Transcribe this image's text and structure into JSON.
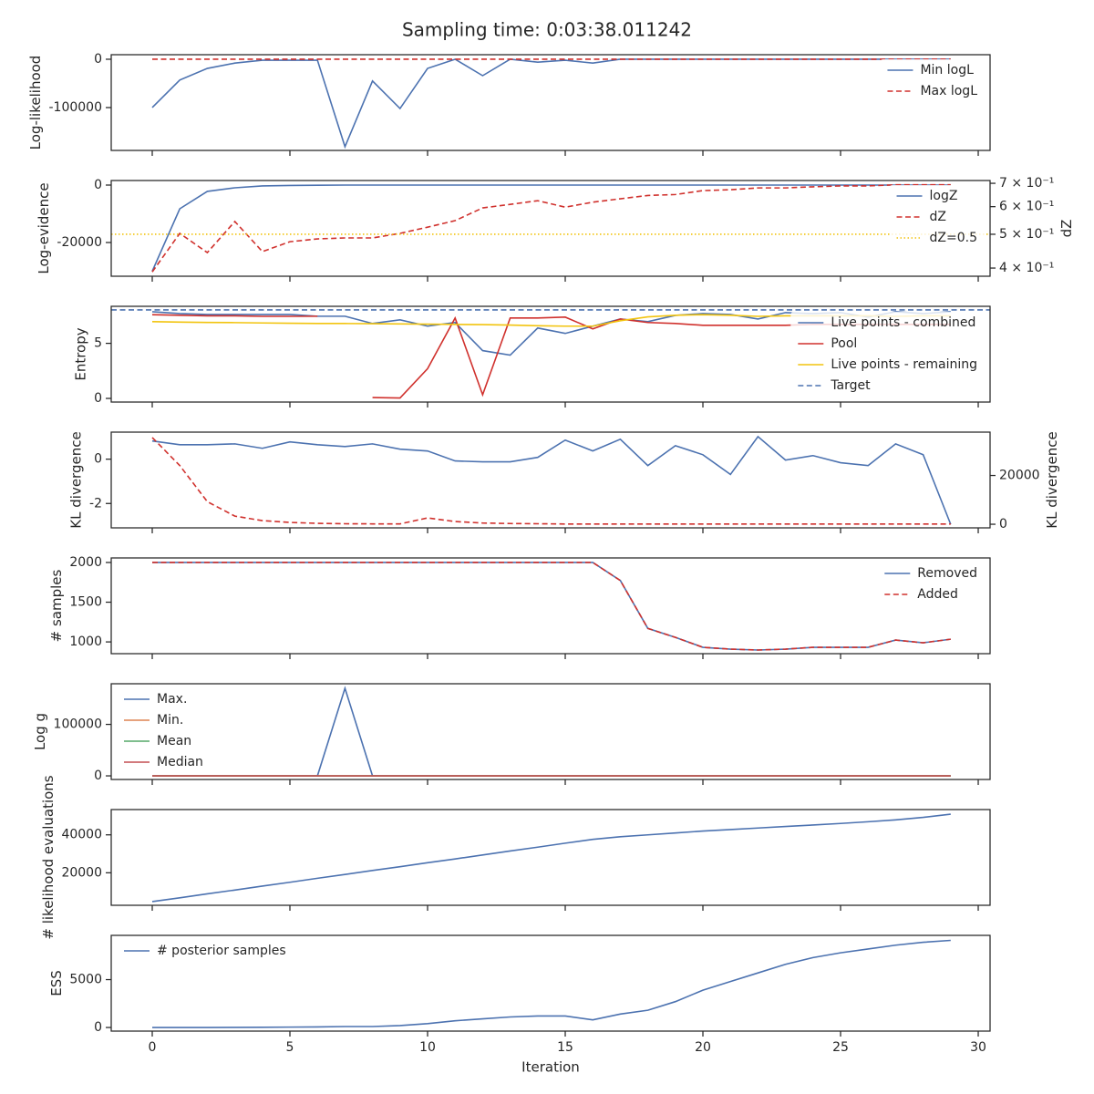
{
  "title": "Sampling time: 0:03:38.011242",
  "chart_data": [
    {
      "type": "line",
      "ylabel": "Log-likelihood",
      "x": [
        0,
        1,
        2,
        3,
        4,
        5,
        6,
        7,
        8,
        9,
        10,
        11,
        12,
        13,
        14,
        15,
        16,
        17,
        18,
        19,
        20,
        21,
        22,
        23,
        24,
        25,
        26,
        27,
        28,
        29
      ],
      "xlim": [
        -1.49,
        30.43
      ],
      "xticks": [
        0,
        5,
        10,
        15,
        20,
        25,
        30
      ],
      "ylim": [
        -188700,
        9400
      ],
      "yticks": [
        -100000,
        0
      ],
      "legend": "upper right",
      "series": [
        {
          "name": "Min logL",
          "color": "#4c72b0",
          "linestyle": "solid",
          "values": [
            -100000,
            -43000,
            -19000,
            -8000,
            -2000,
            -2000,
            -2000,
            -181000,
            -45000,
            -102000,
            -19000,
            0,
            -34000,
            0,
            -6000,
            -2000,
            -8000,
            0,
            0,
            0,
            0,
            0,
            0,
            0,
            0,
            0,
            0,
            0,
            0,
            0
          ]
        },
        {
          "name": "Max logL",
          "color": "#d0312d",
          "linestyle": "dashed",
          "values": [
            0,
            0,
            0,
            0,
            0,
            0,
            0,
            0,
            0,
            0,
            0,
            0,
            0,
            0,
            0,
            0,
            0,
            0,
            0,
            0,
            0,
            0,
            0,
            0,
            0,
            0,
            0,
            0,
            0,
            0
          ]
        }
      ]
    },
    {
      "type": "line",
      "ylabel": "Log-evidence",
      "y2label": "dZ",
      "x": [
        0,
        1,
        2,
        3,
        4,
        5,
        6,
        7,
        8,
        9,
        10,
        11,
        12,
        13,
        14,
        15,
        16,
        17,
        18,
        19,
        20,
        21,
        22,
        23,
        24,
        25,
        26,
        27,
        28,
        29
      ],
      "xlim": [
        -1.49,
        30.43
      ],
      "xticks": [
        0,
        5,
        10,
        15,
        20,
        25,
        30
      ],
      "ylim": [
        -31746,
        1587
      ],
      "yticks": [
        -20000,
        0
      ],
      "y2lim": [
        0.379,
        0.713
      ],
      "y2log": true,
      "y2ticks": [
        {
          "value": 0.4,
          "label": "4 × 10⁻¹"
        },
        {
          "value": 0.5,
          "label": "5 × 10⁻¹"
        },
        {
          "value": 0.6,
          "label": "6 × 10⁻¹"
        },
        {
          "value": 0.7,
          "label": "7 × 10⁻¹"
        }
      ],
      "legend": "upper right",
      "series": [
        {
          "name": "logZ",
          "color": "#4c72b0",
          "linestyle": "solid",
          "values": [
            -30000,
            -8250,
            -2200,
            -950,
            -300,
            -150,
            -50,
            0,
            0,
            0,
            0,
            0,
            0,
            0,
            0,
            0,
            0,
            0,
            0,
            0,
            0,
            0,
            0,
            0,
            0,
            0,
            0,
            0,
            0,
            0
          ]
        },
        {
          "name": "dZ",
          "color": "#d0312d",
          "linestyle": "dashed",
          "axis": "y2",
          "values": [
            0.39,
            0.503,
            0.443,
            0.544,
            0.446,
            0.476,
            0.485,
            0.488,
            0.488,
            0.503,
            0.524,
            0.547,
            0.595,
            0.609,
            0.624,
            0.598,
            0.618,
            0.632,
            0.646,
            0.65,
            0.667,
            0.671,
            0.679,
            0.679,
            0.684,
            0.688,
            0.688,
            0.693,
            0.693,
            0.693
          ]
        }
      ],
      "hlines": [
        {
          "name": "dZ=0.5",
          "value": 0.5,
          "axis": "y2",
          "color": "#f2c40f",
          "linestyle": "dotted"
        }
      ]
    },
    {
      "type": "line",
      "ylabel": "Entropy",
      "x": [
        0,
        1,
        2,
        3,
        4,
        5,
        6,
        7,
        8,
        9,
        10,
        11,
        12,
        13,
        14,
        15,
        16,
        17,
        18,
        19,
        20,
        21,
        22,
        23,
        24,
        25,
        26,
        27,
        28,
        29
      ],
      "xlim": [
        -1.49,
        30.43
      ],
      "xticks": [
        0,
        5,
        10,
        15,
        20,
        25,
        30
      ],
      "ylim": [
        -0.33,
        8.36
      ],
      "yticks": [
        0,
        5
      ],
      "legend": "lower right",
      "series": [
        {
          "name": "Live points - combined",
          "color": "#4c72b0",
          "linestyle": "solid",
          "values": [
            7.87,
            7.7,
            7.62,
            7.62,
            7.62,
            7.62,
            7.46,
            7.46,
            6.8,
            7.13,
            6.56,
            6.89,
            4.34,
            3.93,
            6.39,
            5.9,
            6.56,
            7.21,
            6.97,
            7.54,
            7.7,
            7.62,
            7.21,
            7.79,
            7.7,
            7.79,
            7.38,
            7.87,
            7.7,
            7.87
          ]
        },
        {
          "name": "Pool",
          "color": "#d0312d",
          "linestyle": "solid",
          "values": [
            7.6,
            7.55,
            7.5,
            7.5,
            7.45,
            7.45,
            7.46,
            null,
            0.08,
            0.04,
            2.7,
            7.3,
            0.33,
            7.3,
            7.3,
            7.38,
            6.31,
            7.21,
            6.89,
            6.8,
            6.64,
            6.64,
            6.64,
            6.64,
            6.72,
            6.72,
            6.72,
            6.72,
            6.72,
            6.72
          ]
        },
        {
          "name": "Live points - remaining",
          "color": "#f2c40f",
          "linestyle": "solid",
          "values": [
            6.97,
            6.93,
            6.9,
            6.88,
            6.85,
            6.82,
            6.8,
            6.8,
            6.78,
            6.76,
            6.74,
            6.72,
            6.7,
            6.66,
            6.6,
            6.56,
            6.56,
            7.05,
            7.4,
            7.55,
            7.6,
            7.55,
            7.45,
            7.5,
            7.5,
            7.5,
            7.5,
            7.45,
            7.5,
            7.5
          ]
        }
      ],
      "hlines": [
        {
          "name": "Target",
          "value": 8.03,
          "color": "#4c72b0",
          "linestyle": "dashed"
        }
      ]
    },
    {
      "type": "line",
      "ylabel": "KL divergence",
      "y2label": "KL divergence",
      "x": [
        0,
        1,
        2,
        3,
        4,
        5,
        6,
        7,
        8,
        9,
        10,
        11,
        12,
        13,
        14,
        15,
        16,
        17,
        18,
        19,
        20,
        21,
        22,
        23,
        24,
        25,
        26,
        27,
        28,
        29
      ],
      "xlim": [
        -1.49,
        30.43
      ],
      "xticks": [
        0,
        5,
        10,
        15,
        20,
        25,
        30
      ],
      "ylim": [
        -3.1,
        1.22
      ],
      "yticks": [
        -2,
        0
      ],
      "y2lim": [
        -1481,
        37778
      ],
      "y2ticks": [
        0,
        20000
      ],
      "series": [
        {
          "color": "#4c72b0",
          "linestyle": "solid",
          "values": [
            0.82,
            0.65,
            0.65,
            0.69,
            0.49,
            0.78,
            0.65,
            0.57,
            0.69,
            0.45,
            0.37,
            -0.08,
            -0.12,
            -0.12,
            0.08,
            0.86,
            0.37,
            0.9,
            -0.29,
            0.61,
            0.2,
            -0.69,
            1.02,
            -0.04,
            0.16,
            -0.16,
            -0.29,
            0.69,
            0.2,
            -2.94
          ]
        },
        {
          "color": "#d0312d",
          "linestyle": "dashed",
          "axis": "y2",
          "values": [
            35556,
            24074,
            9259,
            3333,
            1481,
            741,
            370,
            200,
            150,
            150,
            2593,
            1111,
            500,
            300,
            200,
            100,
            100,
            100,
            100,
            100,
            100,
            100,
            100,
            100,
            100,
            100,
            100,
            100,
            100,
            100
          ]
        }
      ]
    },
    {
      "type": "line",
      "ylabel": "# samples",
      "x": [
        0,
        1,
        2,
        3,
        4,
        5,
        6,
        7,
        8,
        9,
        10,
        11,
        12,
        13,
        14,
        15,
        16,
        17,
        18,
        19,
        20,
        21,
        22,
        23,
        24,
        25,
        26,
        27,
        28,
        29
      ],
      "xlim": [
        -1.49,
        30.43
      ],
      "xticks": [
        0,
        5,
        10,
        15,
        20,
        25,
        30
      ],
      "ylim": [
        852,
        2057
      ],
      "yticks": [
        1000,
        1500,
        2000
      ],
      "legend": "upper right",
      "series": [
        {
          "name": "Removed",
          "color": "#4c72b0",
          "linestyle": "solid",
          "values": [
            2000,
            2000,
            2000,
            2000,
            2000,
            2000,
            2000,
            2000,
            2000,
            2000,
            2000,
            2000,
            2000,
            2000,
            2000,
            2000,
            2000,
            1773,
            1170,
            1057,
            932,
            909,
            898,
            909,
            932,
            932,
            932,
            1023,
            989,
            1034
          ]
        },
        {
          "name": "Added",
          "color": "#d0312d",
          "linestyle": "dashed",
          "values": [
            2000,
            2000,
            2000,
            2000,
            2000,
            2000,
            2000,
            2000,
            2000,
            2000,
            2000,
            2000,
            2000,
            2000,
            2000,
            2000,
            2000,
            1773,
            1170,
            1057,
            932,
            909,
            898,
            909,
            932,
            932,
            932,
            1023,
            989,
            1034
          ]
        }
      ]
    },
    {
      "type": "line",
      "ylabel": "Log g",
      "x": [
        0,
        1,
        2,
        3,
        4,
        5,
        6,
        7,
        8,
        9,
        10,
        11,
        12,
        13,
        14,
        15,
        16,
        17,
        18,
        19,
        20,
        21,
        22,
        23,
        24,
        25,
        26,
        27,
        28,
        29
      ],
      "xlim": [
        -1.49,
        30.43
      ],
      "xticks": [
        0,
        5,
        10,
        15,
        20,
        25,
        30
      ],
      "ylim": [
        -7018,
        178947
      ],
      "yticks": [
        0,
        100000
      ],
      "legend": "upper left",
      "series": [
        {
          "name": "Max.",
          "color": "#4c72b0",
          "linestyle": "solid",
          "values": [
            0,
            0,
            0,
            0,
            0,
            0,
            0,
            170175,
            0,
            0,
            0,
            0,
            0,
            0,
            0,
            0,
            0,
            0,
            0,
            0,
            0,
            0,
            0,
            0,
            0,
            0,
            0,
            0,
            0,
            0
          ]
        },
        {
          "name": "Min.",
          "color": "#dd8452",
          "linestyle": "solid",
          "values": [
            0,
            0,
            0,
            0,
            0,
            0,
            0,
            0,
            0,
            0,
            0,
            0,
            0,
            0,
            0,
            0,
            0,
            0,
            0,
            0,
            0,
            0,
            0,
            0,
            0,
            0,
            0,
            0,
            0,
            0
          ]
        },
        {
          "name": "Mean",
          "color": "#55a868",
          "linestyle": "solid",
          "values": [
            0,
            0,
            0,
            0,
            0,
            0,
            0,
            0,
            0,
            0,
            0,
            0,
            0,
            0,
            0,
            0,
            0,
            0,
            0,
            0,
            0,
            0,
            0,
            0,
            0,
            0,
            0,
            0,
            0,
            0
          ]
        },
        {
          "name": "Median",
          "color": "#c44e52",
          "linestyle": "solid",
          "values": [
            0,
            0,
            0,
            0,
            0,
            0,
            0,
            0,
            0,
            0,
            0,
            0,
            0,
            0,
            0,
            0,
            0,
            0,
            0,
            0,
            0,
            0,
            0,
            0,
            0,
            0,
            0,
            0,
            0,
            0
          ]
        }
      ]
    },
    {
      "type": "line",
      "ylabel": "# likelihood evaluations",
      "x": [
        0,
        1,
        2,
        3,
        4,
        5,
        6,
        7,
        8,
        9,
        10,
        11,
        12,
        13,
        14,
        15,
        16,
        17,
        18,
        19,
        20,
        21,
        22,
        23,
        24,
        25,
        26,
        27,
        28,
        29
      ],
      "xlim": [
        -1.49,
        30.43
      ],
      "xticks": [
        0,
        5,
        10,
        15,
        20,
        25,
        30
      ],
      "ylim": [
        2857,
        53333
      ],
      "yticks": [
        20000,
        40000
      ],
      "series": [
        {
          "color": "#4c72b0",
          "linestyle": "solid",
          "values": [
            4800,
            6800,
            8900,
            10900,
            13000,
            15000,
            17100,
            19100,
            21200,
            23200,
            25300,
            27300,
            29400,
            31500,
            33500,
            35600,
            37600,
            39000,
            40000,
            41000,
            42000,
            42800,
            43600,
            44400,
            45200,
            46000,
            46900,
            47900,
            49200,
            50900
          ]
        }
      ]
    },
    {
      "type": "line",
      "ylabel": "ESS",
      "xlabel": "Iteration",
      "x": [
        0,
        1,
        2,
        3,
        4,
        5,
        6,
        7,
        8,
        9,
        10,
        11,
        12,
        13,
        14,
        15,
        16,
        17,
        18,
        19,
        20,
        21,
        22,
        23,
        24,
        25,
        26,
        27,
        28,
        29
      ],
      "xlim": [
        -1.49,
        30.43
      ],
      "xticks": [
        0,
        5,
        10,
        15,
        20,
        25,
        30
      ],
      "ylim": [
        -377,
        9623
      ],
      "yticks": [
        0,
        5000
      ],
      "legend": "upper left",
      "series": [
        {
          "name": "# posterior samples",
          "color": "#4c72b0",
          "linestyle": "solid",
          "values": [
            0,
            0,
            0,
            10,
            20,
            40,
            60,
            100,
            100,
            200,
            400,
            700,
            900,
            1100,
            1200,
            1200,
            800,
            1400,
            1800,
            2700,
            3900,
            4800,
            5700,
            6600,
            7300,
            7800,
            8200,
            8600,
            8900,
            9100
          ]
        }
      ]
    }
  ]
}
